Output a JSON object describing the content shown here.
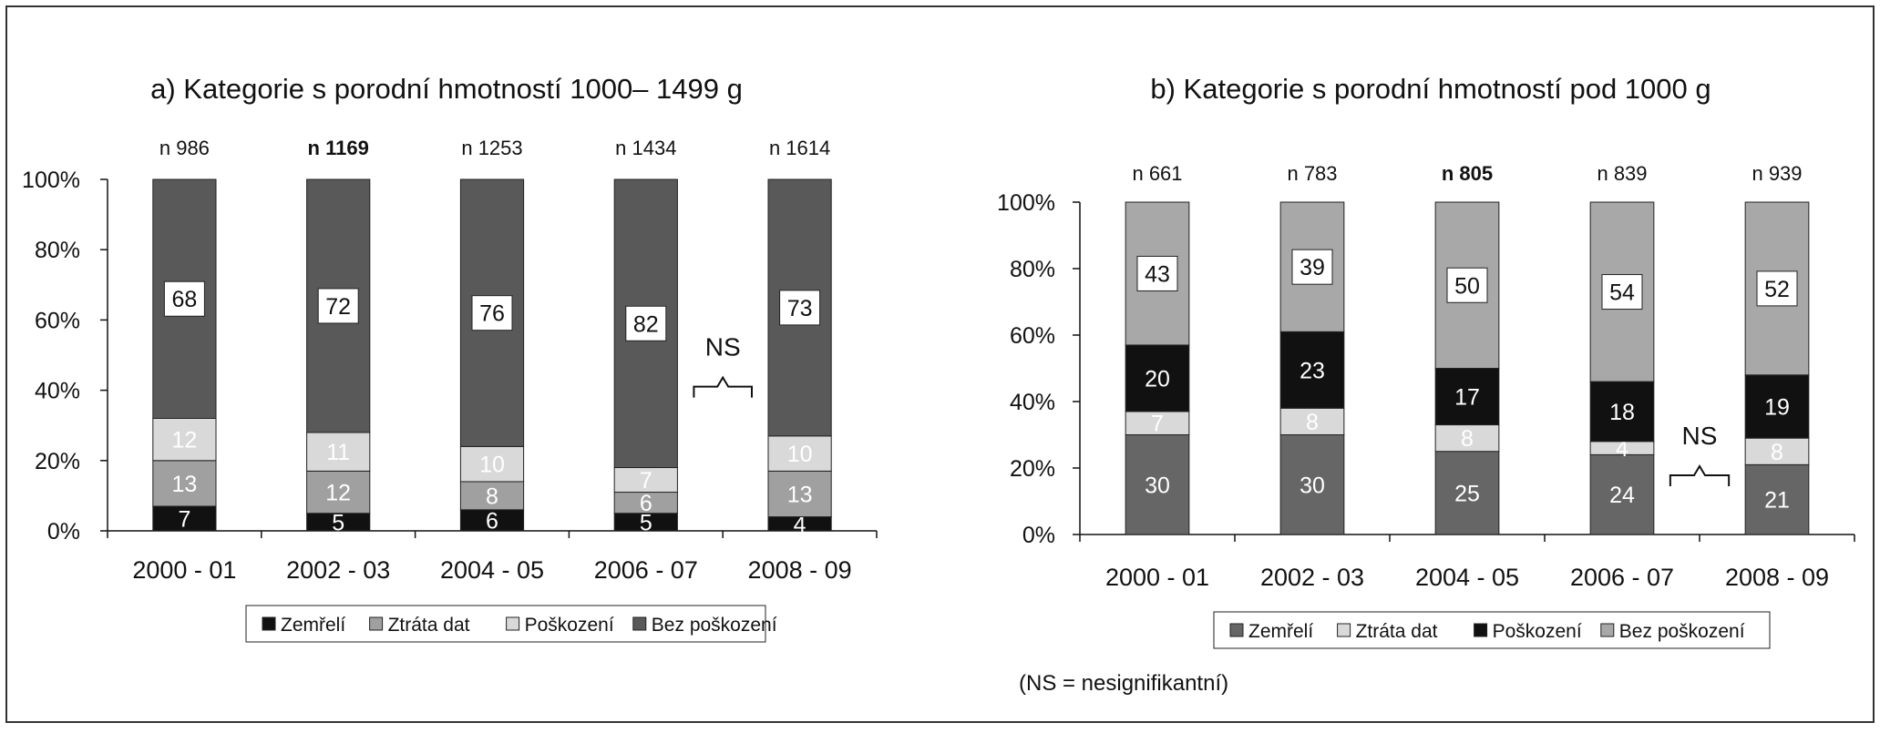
{
  "footnote": "(NS = nesignifikantní)",
  "colors": {
    "frame": "#333333",
    "dark_gray": "#595959",
    "mid_gray": "#a0a0a0",
    "light_gray": "#d9d9d9",
    "black": "#111111",
    "label_box": "#ffffff"
  },
  "chart_data": [
    {
      "type": "bar",
      "stacked": true,
      "title": "a) Kategorie s porodní hmotností 1000– 1499 g",
      "categories": [
        "2000 - 01",
        "2002 - 03",
        "2004 - 05",
        "2006 - 07",
        "2008 - 09"
      ],
      "n_labels": [
        "n 986",
        "n 1169",
        "n 1253",
        "n 1434",
        "n 1614"
      ],
      "n_bold": [
        false,
        true,
        false,
        false,
        false
      ],
      "yticks": [
        "0%",
        "20%",
        "40%",
        "60%",
        "80%",
        "100%"
      ],
      "ylim": [
        0,
        100
      ],
      "series": [
        {
          "name": "Zemřelí",
          "color": "#111111",
          "values": [
            7,
            5,
            6,
            5,
            4
          ],
          "label_color": "#ffffff"
        },
        {
          "name": "Ztráta dat",
          "color": "#a0a0a0",
          "values": [
            13,
            12,
            8,
            6,
            13
          ],
          "label_color": "#ffffff"
        },
        {
          "name": "Poškození",
          "color": "#d9d9d9",
          "values": [
            12,
            11,
            10,
            7,
            10
          ],
          "label_color": "#ffffff"
        },
        {
          "name": "Bez poškození",
          "color": "#595959",
          "values": [
            68,
            72,
            76,
            82,
            73
          ],
          "label_color": "#111111",
          "boxed": true
        }
      ],
      "annotation": {
        "text": "NS",
        "between": [
          "2006 - 07",
          "2008 - 09"
        ]
      }
    },
    {
      "type": "bar",
      "stacked": true,
      "title": "b) Kategorie s porodní hmotností pod 1000 g",
      "categories": [
        "2000 - 01",
        "2002 - 03",
        "2004 - 05",
        "2006 - 07",
        "2008 - 09"
      ],
      "n_labels": [
        "n 661",
        "n 783",
        "n 805",
        "n 839",
        "n 939"
      ],
      "n_bold": [
        false,
        false,
        true,
        false,
        false
      ],
      "yticks": [
        "0%",
        "20%",
        "40%",
        "60%",
        "80%",
        "100%"
      ],
      "ylim": [
        0,
        100
      ],
      "series": [
        {
          "name": "Zemřelí",
          "color": "#666666",
          "values": [
            30,
            30,
            25,
            24,
            21
          ],
          "label_color": "#ffffff"
        },
        {
          "name": "Ztráta dat",
          "color": "#d9d9d9",
          "values": [
            7,
            8,
            8,
            4,
            8
          ],
          "label_color": "#ffffff"
        },
        {
          "name": "Poškození",
          "color": "#111111",
          "values": [
            20,
            23,
            17,
            18,
            19
          ],
          "label_color": "#ffffff"
        },
        {
          "name": "Bez poškození",
          "color": "#a8a8a8",
          "values": [
            43,
            39,
            50,
            54,
            52
          ],
          "label_color": "#111111",
          "boxed": true
        }
      ],
      "annotation": {
        "text": "NS",
        "between": [
          "2006 - 07",
          "2008 - 09"
        ]
      }
    }
  ]
}
